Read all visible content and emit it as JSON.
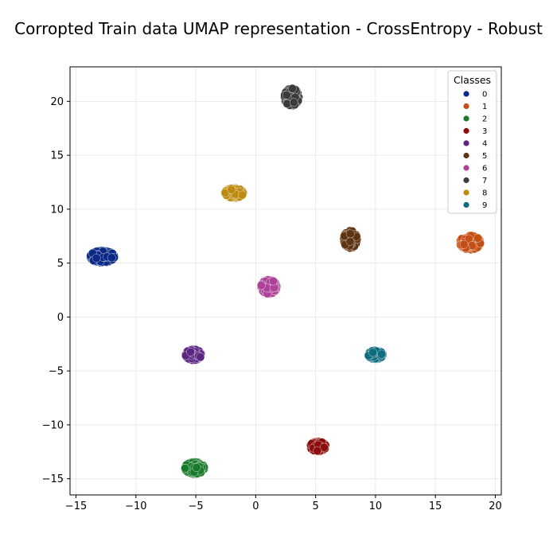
{
  "chart_data": {
    "type": "scatter",
    "title": "Corropted Train data UMAP representation - CrossEntropy - Robust",
    "xlabel": "",
    "ylabel": "",
    "xlim": [
      -15.5,
      20.5
    ],
    "ylim": [
      -16.5,
      23.2
    ],
    "xticks": [
      -15,
      -10,
      -5,
      0,
      5,
      10,
      15,
      20
    ],
    "yticks": [
      -15,
      -10,
      -5,
      0,
      5,
      10,
      15,
      20
    ],
    "grid": true,
    "legend": {
      "title": "Classes",
      "placement": "top-right"
    },
    "series": [
      {
        "name": "0",
        "color": "#0b2a85",
        "center": [
          -12.8,
          5.6
        ],
        "spread": [
          1.0,
          0.55
        ]
      },
      {
        "name": "1",
        "color": "#c44e14",
        "center": [
          17.9,
          6.9
        ],
        "spread": [
          0.85,
          0.65
        ]
      },
      {
        "name": "2",
        "color": "#1a7a2c",
        "center": [
          -5.1,
          -14.0
        ],
        "spread": [
          0.8,
          0.55
        ]
      },
      {
        "name": "3",
        "color": "#8c0d0d",
        "center": [
          5.2,
          -12.0
        ],
        "spread": [
          0.65,
          0.45
        ]
      },
      {
        "name": "4",
        "color": "#5c2483",
        "center": [
          -5.2,
          -3.5
        ],
        "spread": [
          0.65,
          0.5
        ]
      },
      {
        "name": "5",
        "color": "#5e3412",
        "center": [
          7.9,
          7.2
        ],
        "spread": [
          0.55,
          0.8
        ]
      },
      {
        "name": "6",
        "color": "#ad4399",
        "center": [
          1.1,
          2.8
        ],
        "spread": [
          0.65,
          0.65
        ]
      },
      {
        "name": "7",
        "color": "#3b3b3b",
        "center": [
          3.0,
          20.4
        ],
        "spread": [
          0.6,
          0.8
        ]
      },
      {
        "name": "8",
        "color": "#bd8b12",
        "center": [
          -1.8,
          11.5
        ],
        "spread": [
          0.75,
          0.45
        ]
      },
      {
        "name": "9",
        "color": "#0f6b7f",
        "center": [
          10.0,
          -3.5
        ],
        "spread": [
          0.6,
          0.4
        ]
      }
    ]
  }
}
